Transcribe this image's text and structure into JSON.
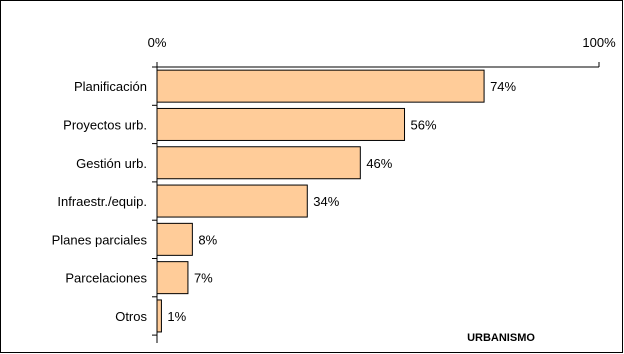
{
  "chart_data": {
    "type": "bar",
    "orientation": "horizontal",
    "categories": [
      "Planificación",
      "Proyectos urb.",
      "Gestión urb.",
      "Infraestr./equip.",
      "Planes parciales",
      "Parcelaciones",
      "Otros"
    ],
    "values": [
      74,
      56,
      46,
      34,
      8,
      7,
      1
    ],
    "value_labels": [
      "74%",
      "56%",
      "46%",
      "34%",
      "8%",
      "7%",
      "1%"
    ],
    "xlim": [
      0,
      100
    ],
    "x_ticks": [
      "0%",
      "100%"
    ],
    "x_axis_position": "top",
    "grid": false,
    "annotation": "URBANISMO",
    "colors": {
      "bar_fill": "#FFCC99",
      "bar_stroke": "#000000",
      "axis": "#000000"
    }
  }
}
